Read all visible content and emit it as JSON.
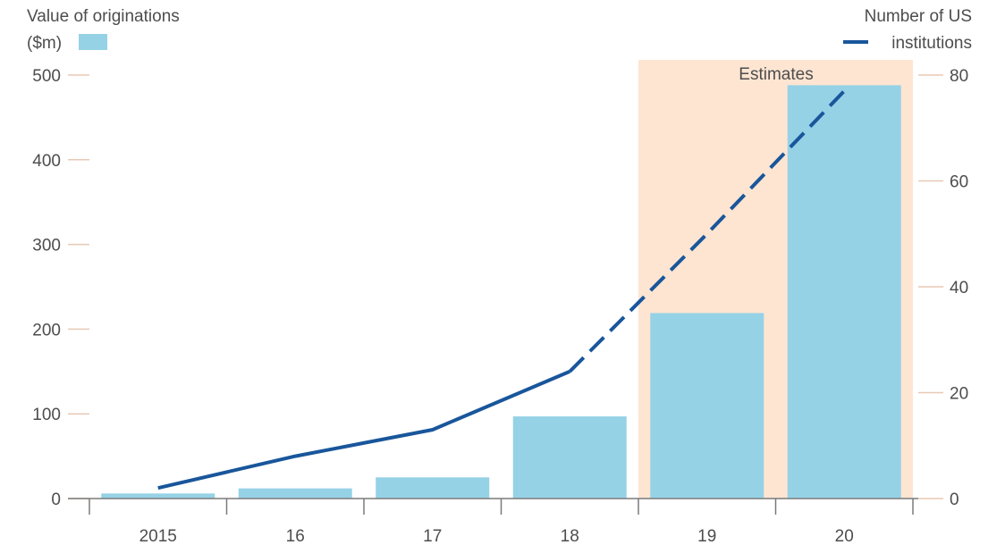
{
  "chart_data": {
    "type": "bar",
    "categories": [
      "2015",
      "16",
      "17",
      "18",
      "19",
      "20"
    ],
    "series": [
      {
        "name": "Value of originations ($m)",
        "kind": "bar",
        "axis": "left",
        "values": [
          6,
          12,
          25,
          97,
          219,
          488
        ],
        "color": "#96d2e6"
      },
      {
        "name": "Number of US institutions",
        "kind": "line",
        "axis": "right",
        "values": [
          2,
          8,
          13,
          24,
          50,
          77
        ],
        "color": "#19569b",
        "dashed_from_index": 3
      }
    ],
    "left_axis": {
      "title_line1": "Value of originations",
      "title_line2": "($m)",
      "ticks": [
        0,
        100,
        200,
        300,
        400,
        500
      ],
      "ylim": [
        0,
        500
      ]
    },
    "right_axis": {
      "title_line1": "Number of US",
      "title_line2": "institutions",
      "ticks": [
        0,
        20,
        40,
        60,
        80
      ],
      "ylim": [
        0,
        80
      ]
    },
    "estimates": {
      "label": "Estimates",
      "from_category": "19",
      "to_category": "20",
      "color": "#fde5d2"
    },
    "axis_color": "#7a7a7a",
    "tick_color": "#e8c9b4"
  }
}
